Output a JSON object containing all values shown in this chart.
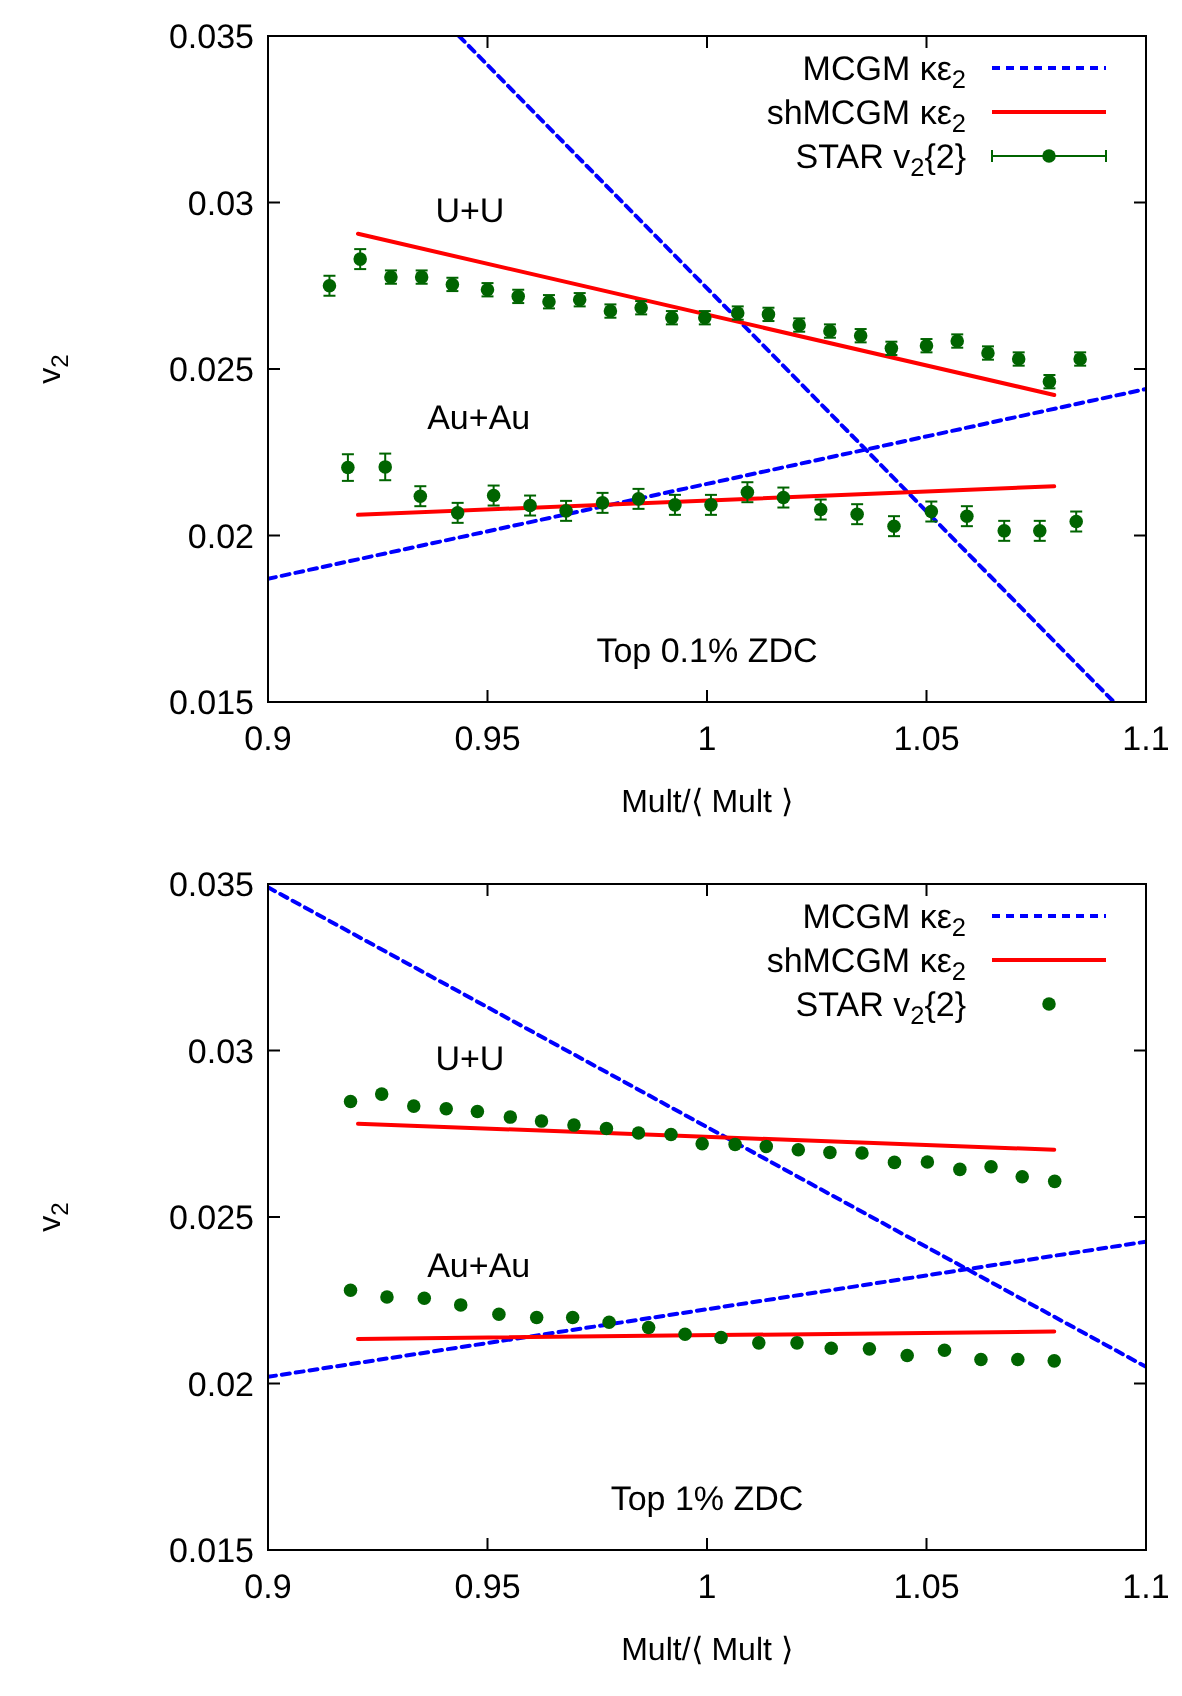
{
  "chart_data": [
    {
      "type": "scatter",
      "xlabel": "Mult/⟨ Mult ⟩",
      "ylabel": "v$_{2}$",
      "xlim": [
        0.9,
        1.1
      ],
      "ylim": [
        0.015,
        0.035
      ],
      "xticks": [
        0.9,
        0.95,
        1,
        1.05,
        1.1
      ],
      "yticks": [
        0.015,
        0.02,
        0.025,
        0.03,
        0.035
      ],
      "legend": "top right",
      "grid": false,
      "annotations": [
        "U+U",
        "Au+Au",
        "Top 0.1% ZDC"
      ],
      "series": [
        {
          "name": "MCGM κε$_{2}$",
          "type": "line",
          "line_style": "dashed",
          "color": "#0000ff",
          "x": [
            0.9435,
            1.0927
          ],
          "values": [
            0.035,
            0.015
          ]
        },
        {
          "type": "line",
          "line_style": "dashed",
          "color": "#0000ff",
          "x": [
            0.9,
            1.1
          ],
          "values": [
            0.0187,
            0.0244
          ]
        },
        {
          "name": "shMCGM κε$_{2}$",
          "type": "line",
          "line_style": "solid",
          "color": "#ff0000",
          "x": [
            0.9205,
            1.0791
          ],
          "values": [
            0.02906,
            0.02422
          ]
        },
        {
          "type": "line",
          "line_style": "solid",
          "color": "#ff0000",
          "x": [
            0.9205,
            1.0791
          ],
          "values": [
            0.02062,
            0.02148
          ]
        },
        {
          "name": "STAR v$_{2}${2}",
          "type": "scatter",
          "marker": "circle",
          "color": "#006400",
          "x": [
            0.914,
            0.921,
            0.928,
            0.935,
            0.942,
            0.95,
            0.957,
            0.964,
            0.971,
            0.978,
            0.985,
            0.992,
            0.9995,
            1.007,
            1.014,
            1.021,
            1.028,
            1.035,
            1.042,
            1.05,
            1.057,
            1.064,
            1.071,
            1.078,
            1.085
          ],
          "values": [
            0.0275,
            0.0283,
            0.02776,
            0.02776,
            0.02754,
            0.02738,
            0.02718,
            0.02702,
            0.02708,
            0.02674,
            0.02684,
            0.02654,
            0.02654,
            0.02668,
            0.02664,
            0.02632,
            0.02614,
            0.026,
            0.02562,
            0.0257,
            0.02584,
            0.02548,
            0.0253,
            0.02462,
            0.0253
          ],
          "errors": [
            0.0003,
            0.0003,
            0.0002,
            0.0002,
            0.0002,
            0.0002,
            0.0002,
            0.0002,
            0.0002,
            0.0002,
            0.0002,
            0.0002,
            0.0002,
            0.0002,
            0.0002,
            0.0002,
            0.0002,
            0.0002,
            0.0002,
            0.0002,
            0.0002,
            0.0002,
            0.0002,
            0.0002,
            0.0002
          ]
        },
        {
          "type": "scatter",
          "marker": "circle",
          "color": "#006400",
          "x": [
            0.9182,
            0.9267,
            0.9347,
            0.9432,
            0.9514,
            0.9597,
            0.9679,
            0.9762,
            0.9844,
            0.9927,
            1.0009,
            1.0092,
            1.0174,
            1.0259,
            1.0342,
            1.0426,
            1.0511,
            1.0592,
            1.0677,
            1.0758,
            1.0841
          ],
          "values": [
            0.02204,
            0.02206,
            0.02118,
            0.02068,
            0.0212,
            0.0209,
            0.02074,
            0.02098,
            0.0211,
            0.02092,
            0.02092,
            0.0213,
            0.02114,
            0.02078,
            0.02064,
            0.02028,
            0.02072,
            0.02058,
            0.02014,
            0.02014,
            0.02042
          ],
          "errors": [
            0.0004,
            0.0004,
            0.0003,
            0.0003,
            0.0003,
            0.0003,
            0.0003,
            0.0003,
            0.0003,
            0.0003,
            0.0003,
            0.0003,
            0.0003,
            0.0003,
            0.0003,
            0.0003,
            0.0003,
            0.0003,
            0.0003,
            0.0003,
            0.0003
          ]
        }
      ]
    },
    {
      "type": "scatter",
      "xlabel": "Mult/⟨ Mult ⟩",
      "ylabel": "v$_{2}$",
      "xlim": [
        0.9,
        1.1
      ],
      "ylim": [
        0.015,
        0.035
      ],
      "xticks": [
        0.9,
        0.95,
        1,
        1.05,
        1.1
      ],
      "yticks": [
        0.015,
        0.02,
        0.025,
        0.03,
        0.035
      ],
      "legend": "top right",
      "grid": false,
      "annotations": [
        "U+U",
        "Au+Au",
        "Top 1% ZDC"
      ],
      "series": [
        {
          "name": "MCGM κε$_{2}$",
          "type": "line",
          "line_style": "dashed",
          "color": "#0000ff",
          "x": [
            0.9,
            1.1
          ],
          "values": [
            0.0349,
            0.0205
          ]
        },
        {
          "type": "line",
          "line_style": "dashed",
          "color": "#0000ff",
          "x": [
            0.9,
            1.1
          ],
          "values": [
            0.0202,
            0.02426
          ]
        },
        {
          "name": "shMCGM κε$_{2}$",
          "type": "line",
          "line_style": "solid",
          "color": "#ff0000",
          "x": [
            0.9205,
            1.0791
          ],
          "values": [
            0.0278,
            0.02702
          ]
        },
        {
          "type": "line",
          "line_style": "solid",
          "color": "#ff0000",
          "x": [
            0.9205,
            1.0791
          ],
          "values": [
            0.02134,
            0.02156
          ]
        },
        {
          "name": "STAR v$_{2}${2}",
          "type": "scatter",
          "marker": "circle",
          "color": "#006400",
          "x": [
            0.9188,
            0.9259,
            0.9332,
            0.9406,
            0.9477,
            0.9552,
            0.9623,
            0.9697,
            0.9771,
            0.9844,
            0.9918,
            0.9989,
            1.0064,
            1.0135,
            1.0208,
            1.028,
            1.0353,
            1.0427,
            1.0502,
            1.0576,
            1.0647,
            1.0718,
            1.0792
          ],
          "values": [
            0.02847,
            0.02869,
            0.02833,
            0.02825,
            0.02817,
            0.028,
            0.02788,
            0.02776,
            0.02766,
            0.02752,
            0.02748,
            0.0272,
            0.02718,
            0.02712,
            0.02702,
            0.02694,
            0.02692,
            0.02664,
            0.02665,
            0.02643,
            0.02651,
            0.02621,
            0.02607
          ]
        },
        {
          "type": "scatter",
          "marker": "circle",
          "color": "#006400",
          "x": [
            0.9188,
            0.9271,
            0.9356,
            0.9439,
            0.9526,
            0.9612,
            0.9694,
            0.9777,
            0.9867,
            0.995,
            1.0032,
            1.0118,
            1.0205,
            1.0283,
            1.037,
            1.0456,
            1.0541,
            1.0624,
            1.0708,
            1.0791
          ],
          "values": [
            0.0228,
            0.0226,
            0.02256,
            0.02236,
            0.02208,
            0.02198,
            0.02198,
            0.02184,
            0.02168,
            0.02148,
            0.02138,
            0.02122,
            0.02122,
            0.02106,
            0.02104,
            0.02084,
            0.021,
            0.02072,
            0.02072,
            0.02068
          ]
        }
      ]
    }
  ]
}
